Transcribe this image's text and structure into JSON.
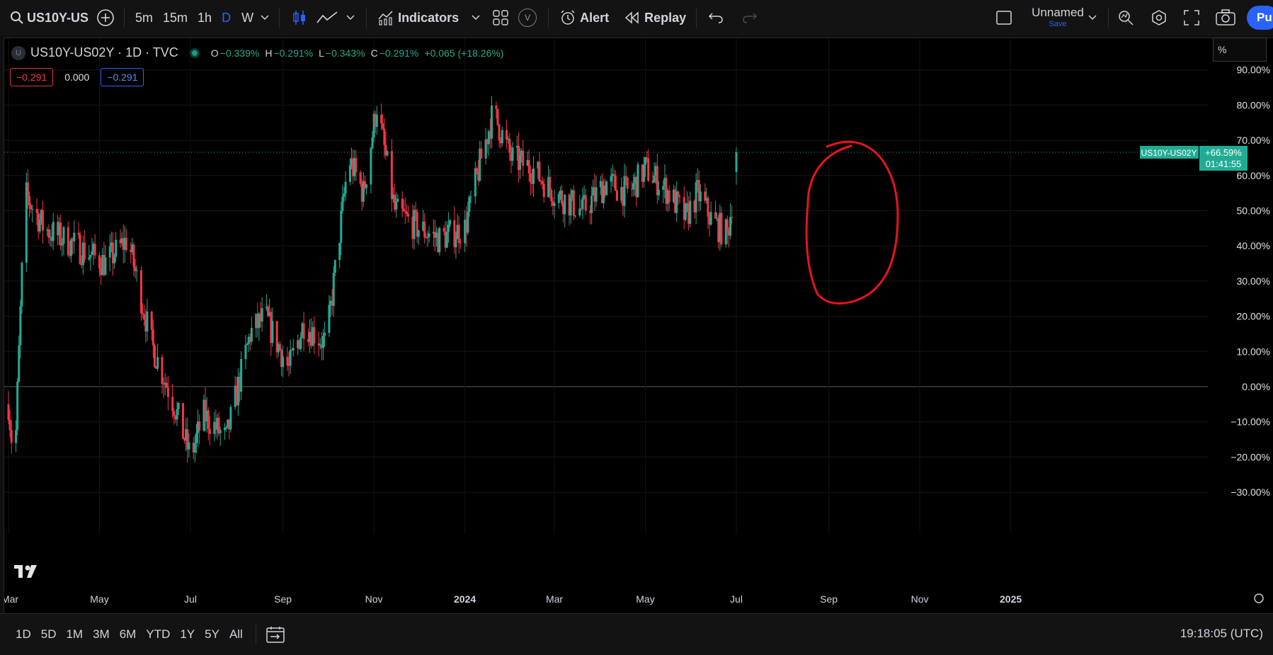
{
  "toolbar": {
    "symbol": "US10Y-US",
    "intervals": [
      "5m",
      "15m",
      "1h",
      "D",
      "W"
    ],
    "active_interval": "D",
    "indicators_label": "Indicators",
    "v_label": "V",
    "alert_label": "Alert",
    "replay_label": "Replay",
    "layout_name": "Unnamed",
    "layout_save": "Save",
    "publish_label": "Pu"
  },
  "legend": {
    "badge": "U",
    "title": "US10Y-US02Y · 1D · TVC",
    "o_label": "O",
    "o_value": "−0.339%",
    "h_label": "H",
    "h_value": "−0.291%",
    "l_label": "L",
    "l_value": "−0.343%",
    "c_label": "C",
    "c_value": "−0.291%",
    "change": "+0.065 (+18.26%)"
  },
  "pills": {
    "left": "−0.291",
    "mid": "0.000",
    "right": "−0.291"
  },
  "scale_mode": "%",
  "price_tag": {
    "symbol": "US10Y-US02Y",
    "value": "+66.59%",
    "countdown": "01:41:55"
  },
  "bottombar": {
    "ranges": [
      "1D",
      "5D",
      "1M",
      "3M",
      "6M",
      "YTD",
      "1Y",
      "5Y",
      "All"
    ],
    "clock": "19:18:05 (UTC)"
  },
  "colors": {
    "up": "#22ab94",
    "down": "#f23645",
    "annotation": "#e8141c",
    "accent": "#2962ff"
  },
  "chart_data": {
    "type": "candlestick",
    "title": "US10Y-US02Y · 1D · TVC",
    "y_unit": "%",
    "ylim": [
      -35,
      95
    ],
    "y_ticks": [
      "90.00%",
      "80.00%",
      "70.00%",
      "60.00%",
      "50.00%",
      "40.00%",
      "30.00%",
      "20.00%",
      "10.00%",
      "0.00%",
      "−10.00%",
      "−20.00%",
      "−30.00%"
    ],
    "x_ticks": [
      "Mar",
      "May",
      "Jul",
      "Sep",
      "Nov",
      "2024",
      "Mar",
      "May",
      "Jul",
      "Sep",
      "Nov",
      "2025"
    ],
    "last_value": 66.59,
    "annotation": "hand-drawn red circle around the latest candles",
    "anchors": [
      [
        "2023-03-01",
        -5
      ],
      [
        "2023-03-05",
        -24
      ],
      [
        "2023-03-12",
        55
      ],
      [
        "2023-03-25",
        45
      ],
      [
        "2023-04-15",
        40
      ],
      [
        "2023-05-05",
        35
      ],
      [
        "2023-05-20",
        42
      ],
      [
        "2023-06-05",
        12
      ],
      [
        "2023-06-20",
        -5
      ],
      [
        "2023-07-01",
        -20
      ],
      [
        "2023-07-10",
        -8
      ],
      [
        "2023-07-25",
        -15
      ],
      [
        "2023-08-10",
        15
      ],
      [
        "2023-08-20",
        20
      ],
      [
        "2023-09-05",
        5
      ],
      [
        "2023-09-15",
        18
      ],
      [
        "2023-09-30",
        12
      ],
      [
        "2023-10-08",
        40
      ],
      [
        "2023-10-15",
        65
      ],
      [
        "2023-10-25",
        55
      ],
      [
        "2023-11-03",
        80
      ],
      [
        "2023-11-15",
        50
      ],
      [
        "2023-12-01",
        45
      ],
      [
        "2023-12-15",
        42
      ],
      [
        "2024-01-01",
        45
      ],
      [
        "2024-01-12",
        65
      ],
      [
        "2024-01-20",
        78
      ],
      [
        "2024-02-01",
        65
      ],
      [
        "2024-02-15",
        62
      ],
      [
        "2024-03-01",
        55
      ],
      [
        "2024-03-20",
        50
      ],
      [
        "2024-04-05",
        58
      ],
      [
        "2024-04-20",
        55
      ],
      [
        "2024-05-01",
        62
      ],
      [
        "2024-05-15",
        56
      ],
      [
        "2024-05-28",
        48
      ],
      [
        "2024-06-05",
        55
      ],
      [
        "2024-06-15",
        47
      ],
      [
        "2024-06-25",
        43
      ],
      [
        "2024-06-28",
        52
      ],
      [
        "2024-07-01",
        66.59
      ]
    ]
  }
}
